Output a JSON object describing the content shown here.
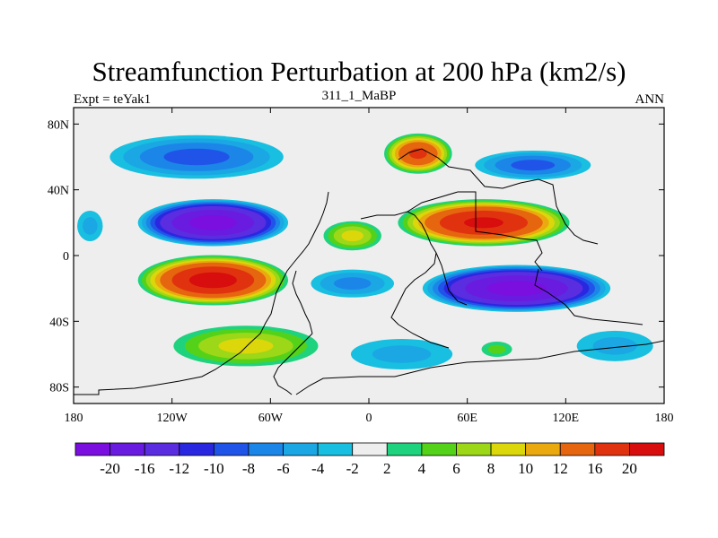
{
  "chart_data": {
    "type": "heatmap",
    "title": "Streamfunction Perturbation at 200 hPa (km2/s)",
    "subtitle_left": "Expt = teYak1",
    "subtitle_center": "311_1_MaBP",
    "subtitle_right": "ANN",
    "x_range": [
      -180,
      180
    ],
    "y_range": [
      -90,
      90
    ],
    "x_ticks": [
      {
        "value": -180,
        "label": "180"
      },
      {
        "value": -120,
        "label": "120W"
      },
      {
        "value": -60,
        "label": "60W"
      },
      {
        "value": 0,
        "label": "0"
      },
      {
        "value": 60,
        "label": "60E"
      },
      {
        "value": 120,
        "label": "120E"
      },
      {
        "value": 180,
        "label": "180"
      }
    ],
    "y_ticks": [
      {
        "value": 80,
        "label": "80N"
      },
      {
        "value": 40,
        "label": "40N"
      },
      {
        "value": 0,
        "label": "0"
      },
      {
        "value": -40,
        "label": "40S"
      },
      {
        "value": -80,
        "label": "80S"
      }
    ],
    "colorbar": {
      "levels": [
        "-20",
        "-16",
        "-12",
        "-10",
        "-8",
        "-6",
        "-4",
        "-2",
        "2",
        "4",
        "6",
        "8",
        "10",
        "12",
        "16",
        "20"
      ],
      "colors": [
        "#7a0fe0",
        "#6a1be0",
        "#5a2de0",
        "#2a27e0",
        "#2054e8",
        "#1b86e8",
        "#1aa7e4",
        "#18bfe0",
        "#eeeeee",
        "#1fd27d",
        "#54d21a",
        "#9cd718",
        "#dcd70b",
        "#eaaa0f",
        "#e6650f",
        "#e1320f",
        "#d80d0d"
      ]
    },
    "features": [
      {
        "name": "north-pacific-low",
        "lon": -105,
        "lat": 60,
        "rx": 60,
        "ry": 15,
        "peak": -8
      },
      {
        "name": "north-america-low",
        "lon": -95,
        "lat": 20,
        "rx": 48,
        "ry": 15,
        "peak": -21
      },
      {
        "name": "tropical-pacific-low-west",
        "lon": -170,
        "lat": 18,
        "rx": 10,
        "ry": 12,
        "peak": -4
      },
      {
        "name": "south-america-high",
        "lon": -95,
        "lat": -15,
        "rx": 48,
        "ry": 16,
        "peak": 21
      },
      {
        "name": "south-pacific-high-tail",
        "lon": -75,
        "lat": -55,
        "rx": 50,
        "ry": 14,
        "peak": 8
      },
      {
        "name": "atlantic-high",
        "lon": -10,
        "lat": 12,
        "rx": 20,
        "ry": 10,
        "peak": 8
      },
      {
        "name": "europe-high",
        "lon": 30,
        "lat": 62,
        "rx": 22,
        "ry": 13,
        "peak": 16
      },
      {
        "name": "asia-high",
        "lon": 70,
        "lat": 20,
        "rx": 55,
        "ry": 15,
        "peak": 20
      },
      {
        "name": "north-asia-low",
        "lon": 100,
        "lat": 55,
        "rx": 40,
        "ry": 10,
        "peak": -8
      },
      {
        "name": "indian-ocean-low",
        "lon": 90,
        "lat": -20,
        "rx": 60,
        "ry": 15,
        "peak": -21
      },
      {
        "name": "atlantic-low",
        "lon": -10,
        "lat": -17,
        "rx": 30,
        "ry": 10,
        "peak": -6
      },
      {
        "name": "south-ocean-low",
        "lon": 20,
        "lat": -60,
        "rx": 40,
        "ry": 12,
        "peak": -4
      },
      {
        "name": "south-indian-high",
        "lon": 78,
        "lat": -57,
        "rx": 12,
        "ry": 6,
        "peak": 4
      },
      {
        "name": "south-east-pacific-low",
        "lon": 150,
        "lat": -55,
        "rx": 30,
        "ry": 12,
        "peak": -4
      }
    ]
  }
}
